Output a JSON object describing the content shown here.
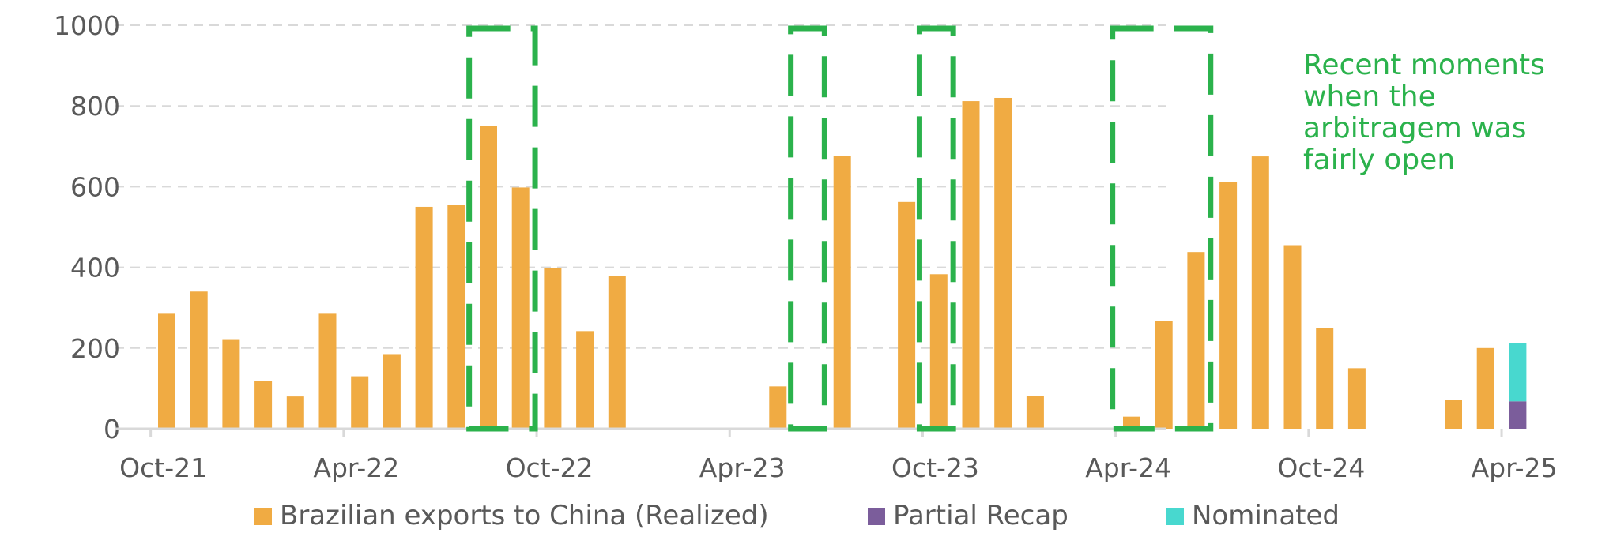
{
  "chart_data": {
    "type": "bar",
    "stacked": true,
    "title": "",
    "xlabel": "",
    "ylabel": "",
    "ylim": [
      0,
      1000
    ],
    "yticks": [
      0,
      200,
      400,
      600,
      800,
      1000
    ],
    "grid": true,
    "legend_position": "bottom",
    "categories": [
      "Oct-21",
      "Nov-21",
      "Dec-21",
      "Jan-22",
      "Feb-22",
      "Mar-22",
      "Apr-22",
      "May-22",
      "Jun-22",
      "Jul-22",
      "Aug-22",
      "Sep-22",
      "Oct-22",
      "Nov-22",
      "Dec-22",
      "Jan-23",
      "Feb-23",
      "Mar-23",
      "Apr-23",
      "May-23",
      "Jun-23",
      "Jul-23",
      "Aug-23",
      "Sep-23",
      "Oct-23",
      "Nov-23",
      "Dec-23",
      "Jan-24",
      "Feb-24",
      "Mar-24",
      "Apr-24",
      "May-24",
      "Jun-24",
      "Jul-24",
      "Aug-24",
      "Sep-24",
      "Oct-24",
      "Nov-24",
      "Dec-24",
      "Jan-25",
      "Feb-25",
      "Mar-25",
      "Apr-25"
    ],
    "x_tick_labels": [
      "Oct-21",
      "Apr-22",
      "Oct-22",
      "Apr-23",
      "Oct-23",
      "Apr-24",
      "Oct-24",
      "Apr-25"
    ],
    "series": [
      {
        "name": "Brazilian exports to China (Realized)",
        "color": "#f0ab43",
        "values": [
          285,
          340,
          222,
          118,
          80,
          285,
          130,
          185,
          550,
          555,
          750,
          598,
          398,
          242,
          378,
          0,
          0,
          0,
          0,
          105,
          0,
          677,
          0,
          562,
          383,
          812,
          820,
          82,
          0,
          0,
          30,
          268,
          438,
          612,
          675,
          455,
          250,
          150,
          0,
          0,
          72,
          200,
          0
        ]
      },
      {
        "name": "Partial Recap",
        "color": "#7b5d9b",
        "values": [
          0,
          0,
          0,
          0,
          0,
          0,
          0,
          0,
          0,
          0,
          0,
          0,
          0,
          0,
          0,
          0,
          0,
          0,
          0,
          0,
          0,
          0,
          0,
          0,
          0,
          0,
          0,
          0,
          0,
          0,
          0,
          0,
          0,
          0,
          0,
          0,
          0,
          0,
          0,
          0,
          0,
          0,
          68
        ]
      },
      {
        "name": "Nominated",
        "color": "#48d8cf",
        "values": [
          0,
          0,
          0,
          0,
          0,
          0,
          0,
          0,
          0,
          0,
          0,
          0,
          0,
          0,
          0,
          0,
          0,
          0,
          0,
          0,
          0,
          0,
          0,
          0,
          0,
          0,
          0,
          0,
          0,
          0,
          0,
          0,
          0,
          0,
          0,
          0,
          0,
          0,
          0,
          0,
          0,
          0,
          145
        ]
      }
    ],
    "highlight_color": "#2bb24c",
    "highlight_ranges": [
      {
        "from": "Aug-22",
        "to": "Oct-22"
      },
      {
        "from": "Jun-23",
        "to": "Jul-23"
      },
      {
        "from": "Oct-23",
        "to": "Nov-23"
      },
      {
        "from": "Apr-24",
        "to": "Jul-24"
      }
    ],
    "annotation": "Recent moments when the arbitragem was fairly open",
    "annotation_lines": [
      "Recent moments",
      "when the",
      "arbitragem was",
      "fairly open"
    ]
  }
}
